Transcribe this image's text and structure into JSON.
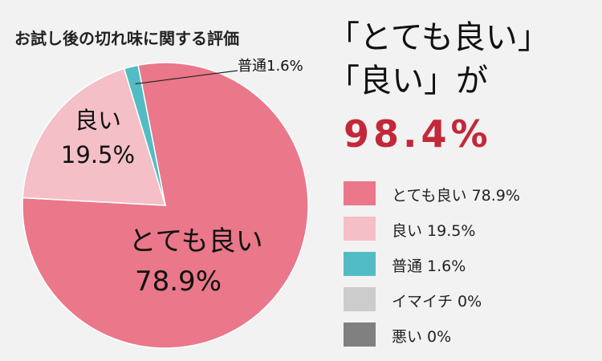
{
  "chart_data": {
    "type": "pie",
    "title": "お試し後の切れ味に関する評価",
    "slices": [
      {
        "label": "とても良い",
        "value": 78.9,
        "display": "78.9%",
        "color": "#ea778a"
      },
      {
        "label": "良い",
        "value": 19.5,
        "display": "19.5%",
        "color": "#f4bfc7"
      },
      {
        "label": "普通",
        "value": 1.6,
        "display": "1.6%",
        "color": "#52bcc4"
      },
      {
        "label": "イマイチ",
        "value": 0,
        "display": "0%",
        "color": "#cccccc"
      },
      {
        "label": "悪い",
        "value": 0,
        "display": "0%",
        "color": "#808080"
      }
    ],
    "legend": [
      {
        "text": "とても良い 78.9%",
        "color": "#ea778a"
      },
      {
        "text": "良い 19.5%",
        "color": "#f4bfc7"
      },
      {
        "text": "普通 1.6%",
        "color": "#52bcc4"
      },
      {
        "text": "イマイチ 0%",
        "color": "#cccccc"
      },
      {
        "text": "悪い 0%",
        "color": "#808080"
      }
    ],
    "legend_position": "right"
  },
  "headline": {
    "line1": "「とても良い」",
    "line2": "「良い」が",
    "percent": "98.4%"
  },
  "colors": {
    "accent": "#c3283a",
    "background": "#f2f2f2"
  }
}
